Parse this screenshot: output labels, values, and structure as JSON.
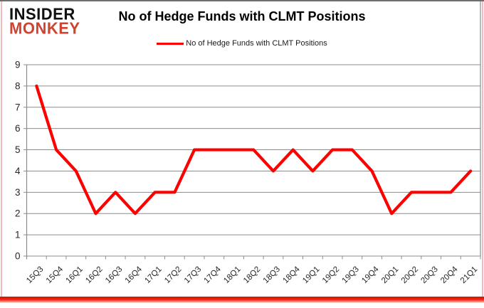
{
  "logo": {
    "line1": "INSIDER",
    "line2": "MONKEY"
  },
  "header": {
    "title": "No of Hedge Funds with CLMT Positions"
  },
  "legend": {
    "label": "No of Hedge Funds with CLMT Positions"
  },
  "colors": {
    "series_line": "#ff0000",
    "logo_accent": "#cf4431",
    "gridline": "#8c8c8c",
    "axis_text": "#262626",
    "bottom_bar": "#ee2211"
  },
  "chart_data": {
    "type": "line",
    "title": "No of Hedge Funds with CLMT Positions",
    "series": [
      {
        "name": "No of Hedge Funds with CLMT Positions",
        "color": "#ff0000",
        "values": [
          8,
          5,
          4,
          2,
          3,
          2,
          3,
          3,
          5,
          5,
          5,
          5,
          4,
          5,
          4,
          5,
          5,
          4,
          2,
          3,
          3,
          3,
          4
        ]
      }
    ],
    "categories": [
      "15Q3",
      "15Q4",
      "16Q1",
      "16Q2",
      "16Q3",
      "16Q4",
      "17Q1",
      "17Q2",
      "17Q3",
      "17Q4",
      "18Q1",
      "18Q2",
      "18Q3",
      "18Q4",
      "19Q1",
      "19Q2",
      "19Q3",
      "19Q4",
      "20Q1",
      "20Q2",
      "20Q3",
      "20Q4",
      "21Q1"
    ],
    "xlabel": "",
    "ylabel": "",
    "ylim": [
      0,
      9
    ],
    "ytick_step": 1,
    "grid": true,
    "legend_position": "top-center"
  }
}
